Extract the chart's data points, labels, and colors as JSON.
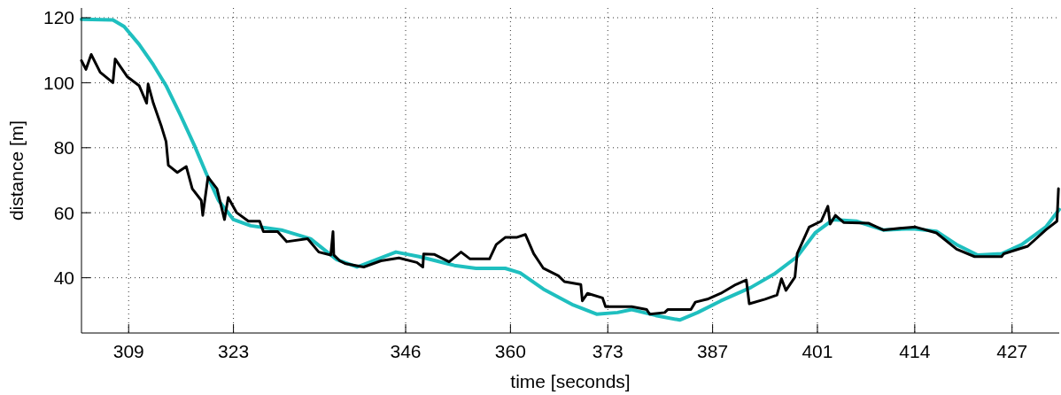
{
  "chart_data": {
    "type": "line",
    "xlabel": "time [seconds]",
    "ylabel": "distance [m]",
    "xlim": [
      302.7,
      433.3
    ],
    "ylim": [
      23,
      123
    ],
    "xticks": [
      309,
      323,
      346,
      360,
      373,
      387,
      401,
      414,
      427
    ],
    "yticks": [
      40,
      60,
      80,
      100,
      120
    ],
    "grid": true,
    "line_style": "solid",
    "marker": "none",
    "series": [
      {
        "color": "#1fbfbf",
        "x": [
          302.7,
          306.9,
          308.4,
          310.4,
          312.3,
          314,
          315.9,
          317.9,
          319.4,
          321,
          323,
          325.3,
          329.4,
          333.3,
          335.3,
          336.8,
          339.5,
          344.7,
          347.8,
          352.5,
          355.4,
          359.3,
          361.3,
          364.4,
          368.4,
          371.5,
          374.3,
          376.2,
          379.4,
          382.6,
          385,
          388.1,
          392.1,
          395.2,
          398.3,
          400.7,
          403.1,
          406.2,
          409.8,
          413.7,
          416.9,
          419.6,
          422.4,
          425.6,
          428.3,
          431.5,
          433.3
        ],
        "values": [
          119.5,
          119.3,
          117.3,
          111.8,
          105.5,
          99.1,
          90.1,
          80.1,
          71.9,
          63.8,
          57.9,
          56,
          54.7,
          52,
          48.3,
          45.6,
          43.3,
          47.9,
          46.5,
          43.8,
          42.9,
          42.9,
          41.5,
          36.5,
          31.6,
          28.8,
          29.3,
          30.2,
          28.4,
          27,
          29.3,
          32.9,
          37,
          41.1,
          46.5,
          53.8,
          57.9,
          57.4,
          54.7,
          55.1,
          54.3,
          50.2,
          47,
          47.4,
          50.2,
          55.6,
          61
        ]
      },
      {
        "color": "#000000",
        "x": [
          302.7,
          303.3,
          304,
          305.2,
          306.9,
          307.2,
          308.8,
          310.4,
          311.4,
          311.6,
          312.3,
          313.4,
          314,
          314.3,
          315.5,
          316.7,
          317.5,
          318.7,
          318.9,
          319.6,
          320.8,
          321.8,
          322.3,
          323.4,
          325,
          326.5,
          327,
          328.9,
          330.1,
          332.9,
          334.4,
          336,
          336.3,
          336.4,
          337.2,
          338,
          340.4,
          342.7,
          345.1,
          347.5,
          348.3,
          348.4,
          349.8,
          351.8,
          353.4,
          354.6,
          357.2,
          358.1,
          359.3,
          360.8,
          362,
          363.1,
          364.4,
          366.4,
          367.2,
          369.4,
          369.6,
          370.3,
          372.3,
          372.7,
          376.2,
          378.2,
          378.6,
          380.6,
          381,
          384.1,
          384.7,
          386.3,
          388.1,
          390.1,
          391.5,
          391.9,
          394,
          395.6,
          396.2,
          396.8,
          398,
          398.3,
          399.9,
          401.5,
          402.4,
          402.7,
          403.4,
          404.5,
          407.8,
          409.8,
          411.4,
          414.1,
          416.9,
          419.6,
          422,
          425.6,
          425.9,
          429.1,
          431.5,
          433,
          433.2
        ],
        "values": [
          106.8,
          104.1,
          108.7,
          103.2,
          100,
          107.3,
          101.9,
          99.1,
          93.7,
          99.6,
          93.7,
          86.4,
          81.9,
          74.6,
          72.4,
          74.2,
          67.4,
          63.8,
          59.2,
          71,
          67.4,
          57.9,
          64.7,
          60.1,
          57.4,
          57.4,
          54.2,
          54.2,
          51.1,
          52,
          47.9,
          47,
          54.2,
          47,
          45.2,
          44.3,
          43.3,
          45.2,
          46.1,
          44.7,
          43.3,
          47.3,
          47.2,
          44.9,
          47.9,
          45.8,
          45.8,
          50.2,
          52.4,
          52.4,
          53.3,
          47.4,
          42.9,
          40.6,
          38.8,
          37.9,
          32.9,
          35.2,
          33.8,
          31.1,
          31.1,
          30.2,
          28.8,
          29.3,
          30.2,
          30.2,
          32.5,
          33.4,
          35.2,
          37.9,
          39.3,
          32,
          33.4,
          34.7,
          39.7,
          36.1,
          40.2,
          47.4,
          55.6,
          57.4,
          62,
          56.5,
          59.2,
          57,
          56.8,
          54.7,
          55.1,
          55.6,
          53.8,
          48.8,
          46.5,
          46.5,
          47.4,
          49.7,
          54.7,
          57.4,
          67.4
        ]
      }
    ]
  }
}
